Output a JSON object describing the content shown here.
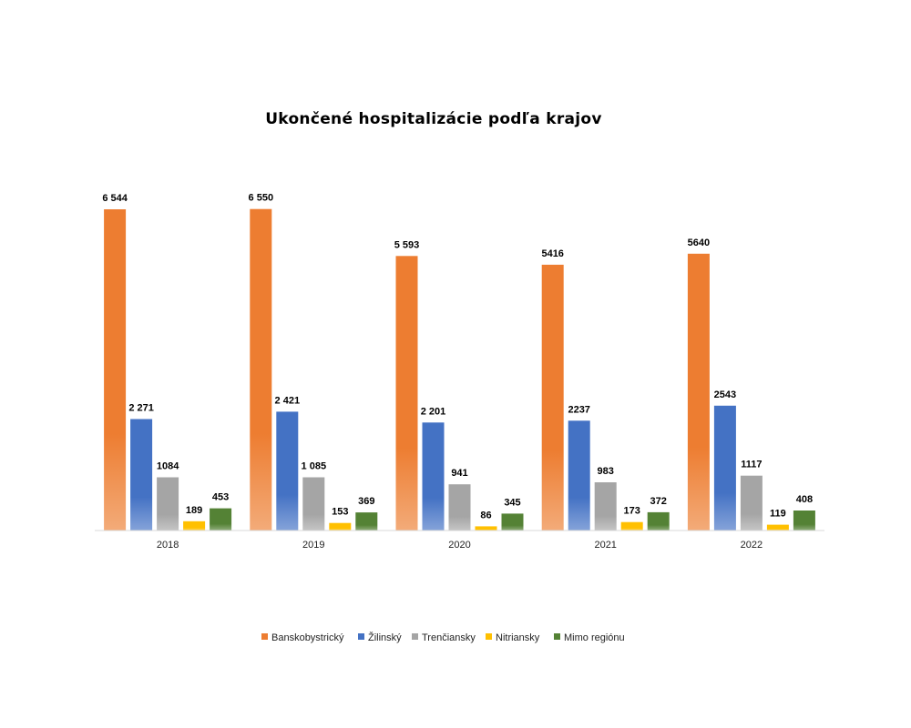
{
  "chart_data": {
    "type": "bar",
    "title": "Ukončené  hospitalizácie podľa krajov",
    "xlabel": "",
    "ylabel": "",
    "categories": [
      "2018",
      "2019",
      "2020",
      "2021",
      "2022"
    ],
    "series": [
      {
        "name": "Banskobystrický",
        "color": "#ED7D31",
        "values": [
          6544,
          6550,
          5593,
          5416,
          5640
        ],
        "labels": [
          "6 544",
          "6 550",
          "5 593",
          "5416",
          "5640"
        ]
      },
      {
        "name": "Žilinský",
        "color": "#4472C4",
        "values": [
          2271,
          2421,
          2201,
          2237,
          2543
        ],
        "labels": [
          "2 271",
          "2 421",
          "2 201",
          "2237",
          "2543"
        ]
      },
      {
        "name": "Trenčiansky",
        "color": "#A5A5A5",
        "values": [
          1084,
          1085,
          941,
          983,
          1117
        ],
        "labels": [
          "1084",
          "1 085",
          "941",
          "983",
          "1117"
        ]
      },
      {
        "name": "Nitriansky",
        "color": "#FFC000",
        "values": [
          189,
          153,
          86,
          173,
          119
        ],
        "labels": [
          "189",
          "153",
          "86",
          "173",
          "119"
        ]
      },
      {
        "name": "Mimo regiónu",
        "color": "#548235",
        "values": [
          453,
          369,
          345,
          372,
          408
        ],
        "labels": [
          "453",
          "369",
          "345",
          "372",
          "408"
        ]
      }
    ],
    "ylim": [
      0,
      6600
    ],
    "grid": false,
    "legend_position": "bottom"
  }
}
